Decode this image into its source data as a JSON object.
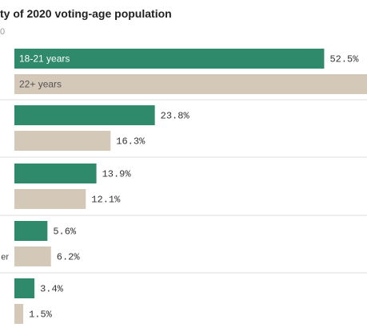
{
  "title": "ty of 2020 voting-age population",
  "subtitle": "0",
  "chart_data": {
    "type": "bar",
    "orientation": "horizontal",
    "title": "ty of 2020 voting-age population",
    "legend_placement": "inline-first-group",
    "xlim": [
      0,
      60
    ],
    "categories": [
      "",
      "",
      "",
      "er",
      ""
    ],
    "series": [
      {
        "name": "18-21 years",
        "color": "#2e8a6a",
        "values": [
          52.5,
          23.8,
          13.9,
          5.6,
          3.4
        ]
      },
      {
        "name": "22+ years",
        "color": "#d4c8b8",
        "values": [
          null,
          16.3,
          12.1,
          6.2,
          1.5
        ]
      }
    ],
    "value_labels": [
      [
        "52.5%",
        "23.8%",
        "13.9%",
        "5.6%",
        "3.4%"
      ],
      [
        "",
        "16.3%",
        "12.1%",
        "6.2%",
        "1.5%"
      ]
    ]
  }
}
